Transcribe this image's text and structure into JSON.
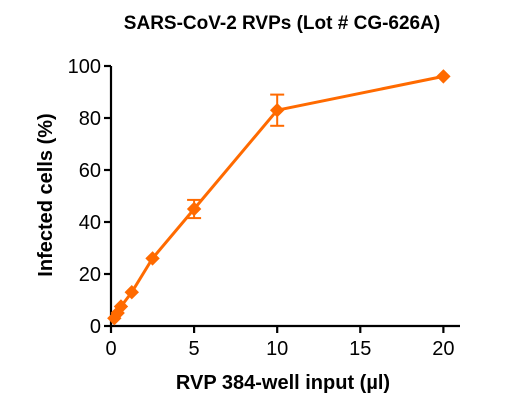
{
  "chart_data": {
    "type": "line",
    "title": "SARS-CoV-2 RVPs (Lot # CG-626A)",
    "xlabel": "RVP 384-well input (µl)",
    "ylabel": "Infected cells (%)",
    "xlim": [
      0,
      21
    ],
    "ylim": [
      0,
      100
    ],
    "x_ticks": [
      0,
      5,
      10,
      15,
      20
    ],
    "y_ticks": [
      0,
      20,
      40,
      60,
      80,
      100
    ],
    "grid": false,
    "legend": "none",
    "marker": "diamond",
    "series": [
      {
        "color": "#FF6A00",
        "x": [
          0.2,
          0.4,
          0.6,
          1.25,
          2.5,
          5,
          10,
          20
        ],
        "y": [
          3,
          5,
          7.5,
          13,
          26,
          45,
          83,
          96
        ],
        "error": [
          0.8,
          1,
          1,
          1.5,
          1,
          3.5,
          6,
          1
        ]
      }
    ]
  }
}
